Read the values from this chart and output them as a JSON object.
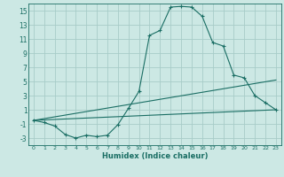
{
  "xlabel": "Humidex (Indice chaleur)",
  "background_color": "#cce8e4",
  "grid_color": "#a8ccc8",
  "line_color": "#1a6e64",
  "xlim": [
    -0.5,
    23.5
  ],
  "ylim": [
    -4,
    16
  ],
  "xticks": [
    0,
    1,
    2,
    3,
    4,
    5,
    6,
    7,
    8,
    9,
    10,
    11,
    12,
    13,
    14,
    15,
    16,
    17,
    18,
    19,
    20,
    21,
    22,
    23
  ],
  "yticks": [
    -3,
    -1,
    1,
    3,
    5,
    7,
    9,
    11,
    13,
    15
  ],
  "curve1_x": [
    0,
    1,
    2,
    3,
    4,
    5,
    6,
    7,
    8,
    9,
    10,
    11,
    12,
    13,
    14,
    15,
    16,
    17,
    18,
    19,
    20,
    21,
    22,
    23
  ],
  "curve1_y": [
    -0.5,
    -0.8,
    -1.3,
    -2.5,
    -3.0,
    -2.6,
    -2.8,
    -2.6,
    -1.1,
    1.2,
    3.6,
    11.5,
    12.2,
    15.5,
    15.6,
    15.5,
    14.2,
    10.5,
    10.0,
    5.9,
    5.5,
    3.0,
    2.0,
    1.0
  ],
  "curve2_x": [
    0,
    23
  ],
  "curve2_y": [
    -0.5,
    5.2
  ],
  "curve3_x": [
    0,
    23
  ],
  "curve3_y": [
    -0.5,
    1.0
  ]
}
